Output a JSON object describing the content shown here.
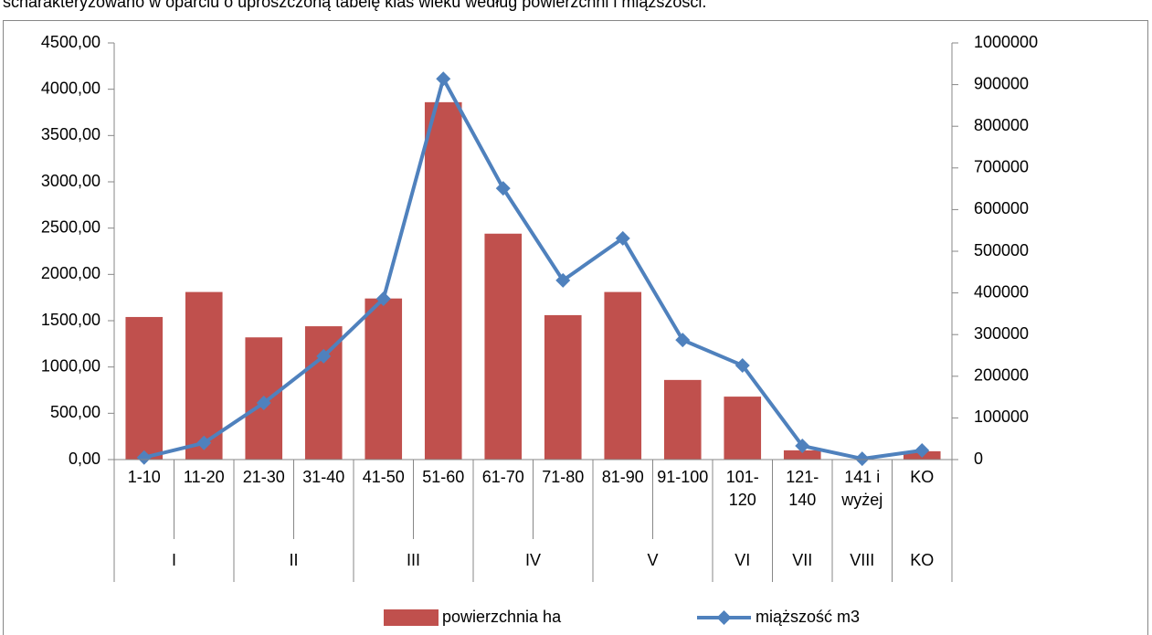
{
  "caption": "scharakteryzowano w oparciu o uproszczoną tabelę klas wieku według powierzchni i miąższości.",
  "chart_data": {
    "type": "bar",
    "categories": [
      "1-10",
      "11-20",
      "21-30",
      "31-40",
      "41-50",
      "51-60",
      "61-70",
      "71-80",
      "81-90",
      "91-100",
      "101-120",
      "121-140",
      "141 i wyżej",
      "KO"
    ],
    "groups": [
      {
        "label": "I",
        "span": 2
      },
      {
        "label": "II",
        "span": 2
      },
      {
        "label": "III",
        "span": 2
      },
      {
        "label": "IV",
        "span": 2
      },
      {
        "label": "V",
        "span": 2
      },
      {
        "label": "VI",
        "span": 1
      },
      {
        "label": "VII",
        "span": 1
      },
      {
        "label": "VIII",
        "span": 1
      },
      {
        "label": "KO",
        "span": 1
      }
    ],
    "series": [
      {
        "name": "powierzchnia ha",
        "type": "bar",
        "color": "#c0504d",
        "values": [
          1540,
          1810,
          1320,
          1440,
          1740,
          3860,
          2440,
          1560,
          1810,
          860,
          680,
          100,
          5,
          90
        ]
      },
      {
        "name": "miąższość m3",
        "type": "line",
        "axis": "y2",
        "color": "#4f81bd",
        "values": [
          5000,
          40000,
          136000,
          248000,
          386000,
          914000,
          651000,
          430000,
          531000,
          287000,
          226000,
          33000,
          2000,
          22000
        ]
      }
    ],
    "ylim": [
      0,
      4500
    ],
    "yticks": [
      {
        "value": 0,
        "label": "0,00"
      },
      {
        "value": 500,
        "label": "500,00"
      },
      {
        "value": 1000,
        "label": "1000,00"
      },
      {
        "value": 1500,
        "label": "1500,00"
      },
      {
        "value": 2000,
        "label": "2000,00"
      },
      {
        "value": 2500,
        "label": "2500,00"
      },
      {
        "value": 3000,
        "label": "3000,00"
      },
      {
        "value": 3500,
        "label": "3500,00"
      },
      {
        "value": 4000,
        "label": "4000,00"
      },
      {
        "value": 4500,
        "label": "4500,00"
      }
    ],
    "y2lim": [
      0,
      1000000
    ],
    "y2ticks": [
      0,
      100000,
      200000,
      300000,
      400000,
      500000,
      600000,
      700000,
      800000,
      900000,
      1000000
    ],
    "legend": "bottom",
    "grid": false
  }
}
